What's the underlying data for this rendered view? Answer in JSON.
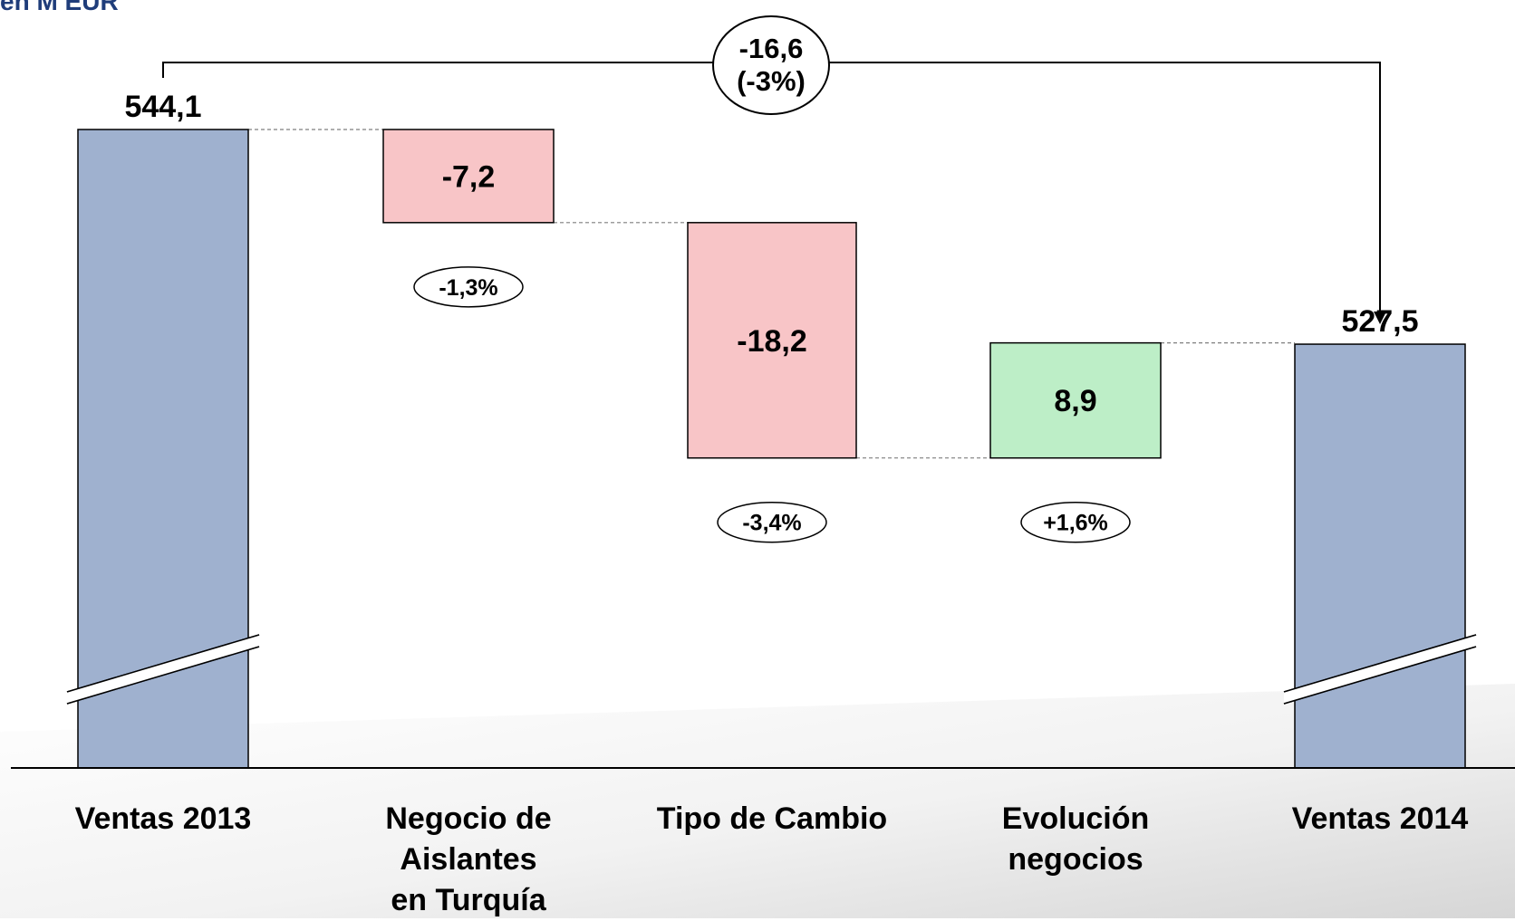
{
  "title": "en M EUR",
  "colors": {
    "total": "#9fb1cf",
    "decrease": "#f8c5c7",
    "increase": "#bdeec7",
    "connector": "#7f7f7f",
    "title": "#1f3d7a"
  },
  "chart_data": {
    "type": "waterfall",
    "title": "en M EUR",
    "categories": [
      "Ventas 2013",
      "Negocio de\nAislantes\nen Turquía",
      "Tipo de Cambio",
      "Evolución\nnegocios",
      "Ventas 2014"
    ],
    "values": [
      544.1,
      -7.2,
      -18.2,
      8.9,
      527.5
    ],
    "kinds": [
      "total",
      "decrease",
      "decrease",
      "increase",
      "total"
    ],
    "value_labels": [
      "544,1",
      "-7,2",
      "-18,2",
      "8,9",
      "527,5"
    ],
    "pct_labels": [
      "",
      "-1,3%",
      "-3,4%",
      "+1,6%",
      ""
    ],
    "axis_break": true,
    "total_change": {
      "value": -16.6,
      "label": "-16,6",
      "pct_label": "(-3%)"
    }
  }
}
